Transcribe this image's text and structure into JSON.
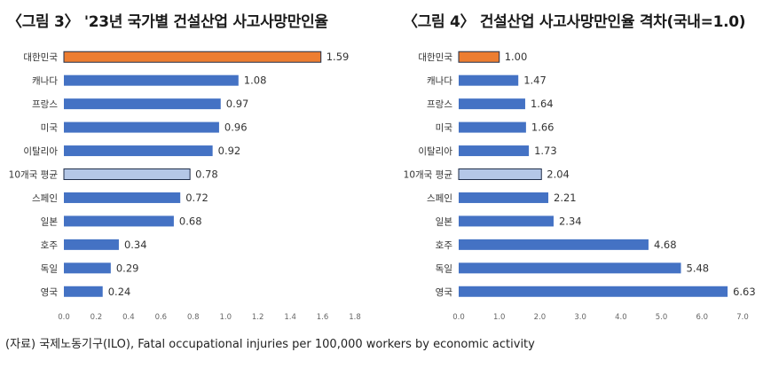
{
  "source_note": "(자료) 국제노동기구(ILO), Fatal occupational injuries per 100,000 workers by economic activity",
  "colors": {
    "default": "#4472C4",
    "highlight": "#ED7D31",
    "average": "#B4C7E7",
    "bar_edge": "#1F2E4A"
  },
  "chart_data": [
    {
      "type": "bar",
      "orientation": "horizontal",
      "title": "〈그림 3〉 '23년 국가별 건설산업 사고사망만인율",
      "categories": [
        "대한민국",
        "캐나다",
        "프랑스",
        "미국",
        "이탈리아",
        "10개국 평균",
        "스페인",
        "일본",
        "호주",
        "독일",
        "영국"
      ],
      "values": [
        1.59,
        1.08,
        0.97,
        0.96,
        0.92,
        0.78,
        0.72,
        0.68,
        0.34,
        0.29,
        0.24
      ],
      "value_labels": [
        "1.59",
        "1.08",
        "0.97",
        "0.96",
        "0.92",
        "0.78",
        "0.72",
        "0.68",
        "0.34",
        "0.29",
        "0.24"
      ],
      "highlight": [
        "highlight",
        "default",
        "default",
        "default",
        "default",
        "average",
        "default",
        "default",
        "default",
        "default",
        "default"
      ],
      "xlim": [
        0,
        1.8
      ],
      "xticks": [
        "0.0",
        "0.2",
        "0.4",
        "0.6",
        "0.8",
        "1.0",
        "1.2",
        "1.4",
        "1.6",
        "1.8"
      ],
      "grid": false,
      "legend": "none"
    },
    {
      "type": "bar",
      "orientation": "horizontal",
      "title": "〈그림 4〉 건설산업 사고사망만인율 격차(국내=1.0)",
      "categories": [
        "대한민국",
        "캐나다",
        "프랑스",
        "미국",
        "이탈리아",
        "10개국 평균",
        "스페인",
        "일본",
        "호주",
        "독일",
        "영국"
      ],
      "values": [
        1.0,
        1.47,
        1.64,
        1.66,
        1.73,
        2.04,
        2.21,
        2.34,
        4.68,
        5.48,
        6.63
      ],
      "value_labels": [
        "1.00",
        "1.47",
        "1.64",
        "1.66",
        "1.73",
        "2.04",
        "2.21",
        "2.34",
        "4.68",
        "5.48",
        "6.63"
      ],
      "highlight": [
        "highlight",
        "default",
        "default",
        "default",
        "default",
        "average",
        "default",
        "default",
        "default",
        "default",
        "default"
      ],
      "xlim": [
        0,
        7
      ],
      "xticks": [
        "0.0",
        "1.0",
        "2.0",
        "3.0",
        "4.0",
        "5.0",
        "6.0",
        "7.0"
      ],
      "grid": false,
      "legend": "none"
    }
  ]
}
